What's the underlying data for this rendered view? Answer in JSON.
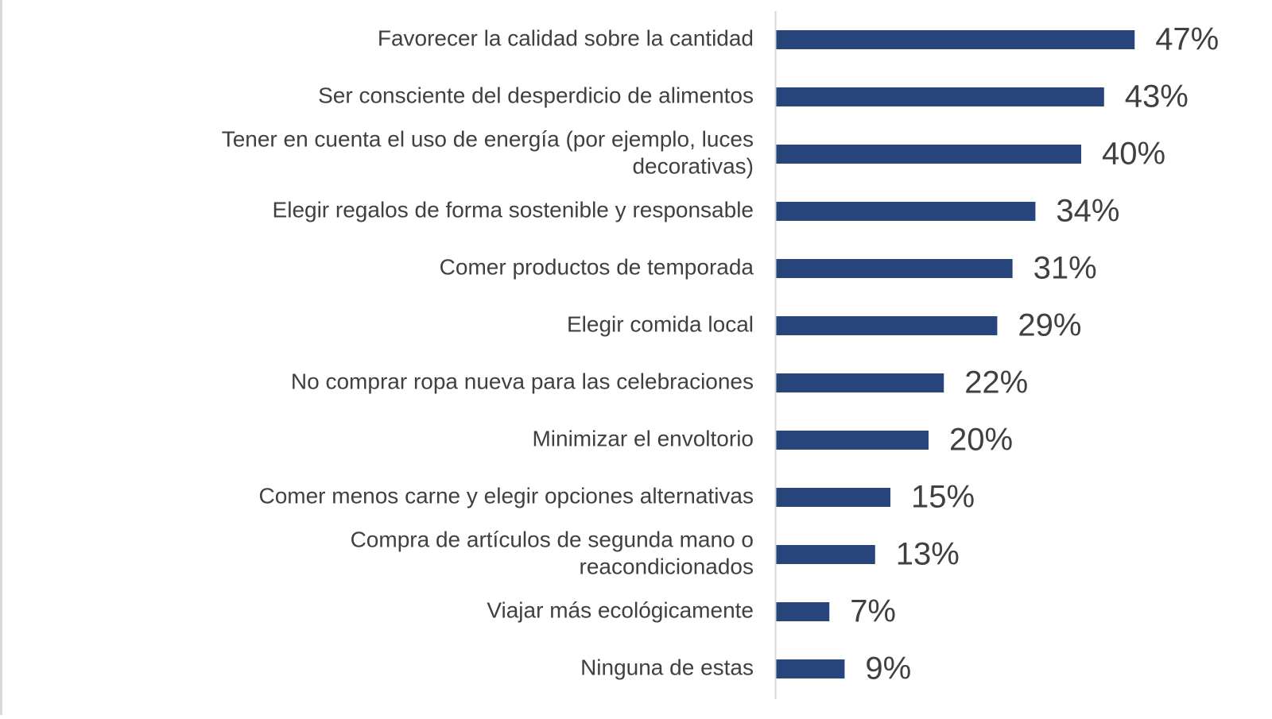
{
  "chart_data": {
    "type": "bar",
    "orientation": "horizontal",
    "title": "",
    "xlabel": "",
    "ylabel": "",
    "xlim": [
      0,
      50
    ],
    "grid": false,
    "legend": "none",
    "bar_color": "#27457a",
    "axis_color": "#d9d9d9",
    "value_suffix": "%",
    "categories": [
      [
        "Favorecer la calidad sobre la cantidad"
      ],
      [
        "Ser consciente del desperdicio de alimentos"
      ],
      [
        "Tener en cuenta el uso de energía (por ejemplo, luces",
        "decorativas)"
      ],
      [
        "Elegir regalos de forma sostenible y responsable"
      ],
      [
        "Comer productos de temporada"
      ],
      [
        "Elegir comida local"
      ],
      [
        "No comprar ropa nueva para las celebraciones"
      ],
      [
        "Minimizar el envoltorio"
      ],
      [
        "Comer menos carne y elegir opciones alternativas"
      ],
      [
        "Compra de artículos de segunda mano o",
        "reacondicionados"
      ],
      [
        "Viajar más ecológicamente"
      ],
      [
        "Ninguna de estas"
      ]
    ],
    "values": [
      47,
      43,
      40,
      34,
      31,
      29,
      22,
      20,
      15,
      13,
      7,
      9
    ],
    "value_labels": [
      "47%",
      "43%",
      "40%",
      "34%",
      "31%",
      "29%",
      "22%",
      "20%",
      "15%",
      "13%",
      "7%",
      "9%"
    ]
  }
}
